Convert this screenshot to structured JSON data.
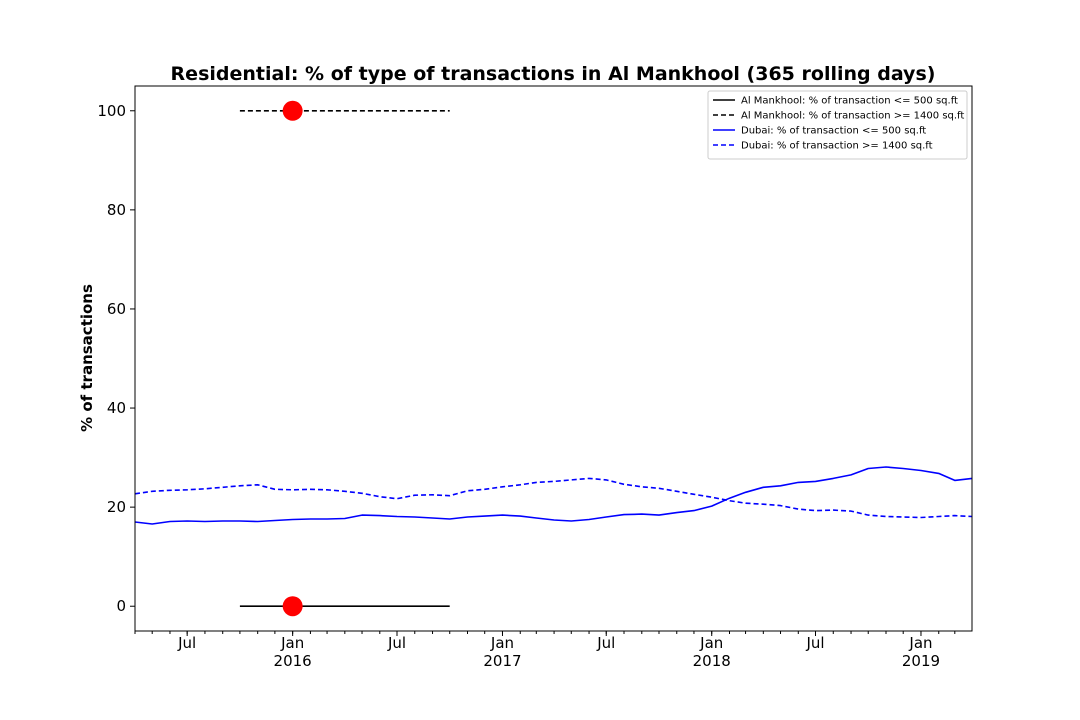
{
  "chart_data": {
    "type": "line",
    "title": "Residential: % of type of transactions in Al Mankhool (365 rolling days)",
    "xlabel": "",
    "ylabel": "% of transactions",
    "xlim": [
      "2015-04-01",
      "2019-03-31"
    ],
    "ylim": [
      -5,
      105
    ],
    "yticks": [
      0,
      20,
      40,
      60,
      80,
      100
    ],
    "xticks": [
      {
        "date": "2015-07-01",
        "label": "Jul",
        "year": ""
      },
      {
        "date": "2016-01-01",
        "label": "Jan",
        "year": "2016"
      },
      {
        "date": "2016-07-01",
        "label": "Jul",
        "year": ""
      },
      {
        "date": "2017-01-01",
        "label": "Jan",
        "year": "2017"
      },
      {
        "date": "2017-07-01",
        "label": "Jul",
        "year": ""
      },
      {
        "date": "2018-01-01",
        "label": "Jan",
        "year": "2018"
      },
      {
        "date": "2018-07-01",
        "label": "Jul",
        "year": ""
      },
      {
        "date": "2019-01-01",
        "label": "Jan",
        "year": "2019"
      }
    ],
    "grid": false,
    "legend": "top-right",
    "series": [
      {
        "name": "Al Mankhool: % of transaction <= 500 sq.ft",
        "color": "#000000",
        "dash": "solid",
        "points": [
          [
            "2015-10-01",
            0
          ],
          [
            "2016-10-01",
            0
          ]
        ]
      },
      {
        "name": "Al Mankhool: % of transaction >= 1400 sq.ft",
        "color": "#000000",
        "dash": "dashed",
        "points": [
          [
            "2015-10-01",
            100
          ],
          [
            "2016-10-01",
            100
          ]
        ]
      },
      {
        "name": "Dubai: % of transaction <= 500 sq.ft",
        "color": "#0000ff",
        "dash": "solid",
        "points": [
          [
            "2015-04-01",
            17
          ],
          [
            "2015-05-01",
            16.6
          ],
          [
            "2015-06-01",
            17.1
          ],
          [
            "2015-07-01",
            17.2
          ],
          [
            "2015-08-01",
            17.1
          ],
          [
            "2015-09-01",
            17.2
          ],
          [
            "2015-10-01",
            17.2
          ],
          [
            "2015-11-01",
            17.1
          ],
          [
            "2015-12-01",
            17.3
          ],
          [
            "2016-01-01",
            17.5
          ],
          [
            "2016-02-01",
            17.6
          ],
          [
            "2016-03-01",
            17.6
          ],
          [
            "2016-04-01",
            17.7
          ],
          [
            "2016-05-01",
            18.4
          ],
          [
            "2016-06-01",
            18.3
          ],
          [
            "2016-07-01",
            18.1
          ],
          [
            "2016-08-01",
            18.0
          ],
          [
            "2016-09-01",
            17.8
          ],
          [
            "2016-10-01",
            17.6
          ],
          [
            "2016-11-01",
            18.0
          ],
          [
            "2016-12-01",
            18.2
          ],
          [
            "2017-01-01",
            18.4
          ],
          [
            "2017-02-01",
            18.2
          ],
          [
            "2017-03-01",
            17.8
          ],
          [
            "2017-04-01",
            17.4
          ],
          [
            "2017-05-01",
            17.2
          ],
          [
            "2017-06-01",
            17.5
          ],
          [
            "2017-07-01",
            18.0
          ],
          [
            "2017-08-01",
            18.5
          ],
          [
            "2017-09-01",
            18.6
          ],
          [
            "2017-10-01",
            18.4
          ],
          [
            "2017-11-01",
            18.9
          ],
          [
            "2017-12-01",
            19.3
          ],
          [
            "2018-01-01",
            20.2
          ],
          [
            "2018-02-01",
            21.8
          ],
          [
            "2018-03-01",
            23.0
          ],
          [
            "2018-04-01",
            24.0
          ],
          [
            "2018-05-01",
            24.3
          ],
          [
            "2018-06-01",
            25.0
          ],
          [
            "2018-07-01",
            25.2
          ],
          [
            "2018-08-01",
            25.8
          ],
          [
            "2018-09-01",
            26.5
          ],
          [
            "2018-10-01",
            27.8
          ],
          [
            "2018-11-01",
            28.1
          ],
          [
            "2018-12-01",
            27.8
          ],
          [
            "2019-01-01",
            27.4
          ],
          [
            "2019-02-01",
            26.8
          ],
          [
            "2019-03-01",
            25.4
          ],
          [
            "2019-03-31",
            25.8
          ]
        ]
      },
      {
        "name": "Dubai: % of transaction >= 1400 sq.ft",
        "color": "#0000ff",
        "dash": "dashed",
        "points": [
          [
            "2015-04-01",
            22.7
          ],
          [
            "2015-05-01",
            23.2
          ],
          [
            "2015-06-01",
            23.4
          ],
          [
            "2015-07-01",
            23.5
          ],
          [
            "2015-08-01",
            23.7
          ],
          [
            "2015-09-01",
            24.0
          ],
          [
            "2015-10-01",
            24.3
          ],
          [
            "2015-11-01",
            24.5
          ],
          [
            "2015-12-01",
            23.6
          ],
          [
            "2016-01-01",
            23.5
          ],
          [
            "2016-02-01",
            23.6
          ],
          [
            "2016-03-01",
            23.5
          ],
          [
            "2016-04-01",
            23.2
          ],
          [
            "2016-05-01",
            22.8
          ],
          [
            "2016-06-01",
            22.1
          ],
          [
            "2016-07-01",
            21.7
          ],
          [
            "2016-08-01",
            22.4
          ],
          [
            "2016-09-01",
            22.5
          ],
          [
            "2016-10-01",
            22.3
          ],
          [
            "2016-11-01",
            23.3
          ],
          [
            "2016-12-01",
            23.6
          ],
          [
            "2017-01-01",
            24.1
          ],
          [
            "2017-02-01",
            24.5
          ],
          [
            "2017-03-01",
            25.0
          ],
          [
            "2017-04-01",
            25.2
          ],
          [
            "2017-05-01",
            25.5
          ],
          [
            "2017-06-01",
            25.8
          ],
          [
            "2017-07-01",
            25.5
          ],
          [
            "2017-08-01",
            24.6
          ],
          [
            "2017-09-01",
            24.1
          ],
          [
            "2017-10-01",
            23.8
          ],
          [
            "2017-11-01",
            23.2
          ],
          [
            "2017-12-01",
            22.6
          ],
          [
            "2018-01-01",
            22.0
          ],
          [
            "2018-02-01",
            21.3
          ],
          [
            "2018-03-01",
            20.8
          ],
          [
            "2018-04-01",
            20.6
          ],
          [
            "2018-05-01",
            20.3
          ],
          [
            "2018-06-01",
            19.6
          ],
          [
            "2018-07-01",
            19.3
          ],
          [
            "2018-08-01",
            19.4
          ],
          [
            "2018-09-01",
            19.2
          ],
          [
            "2018-10-01",
            18.4
          ],
          [
            "2018-11-01",
            18.1
          ],
          [
            "2018-12-01",
            18.0
          ],
          [
            "2019-01-01",
            17.9
          ],
          [
            "2019-02-01",
            18.1
          ],
          [
            "2019-03-01",
            18.3
          ],
          [
            "2019-03-31",
            18.1
          ]
        ]
      }
    ],
    "markers": [
      {
        "date": "2016-01-01",
        "y": 100,
        "color": "#ff0000"
      },
      {
        "date": "2016-01-01",
        "y": 0,
        "color": "#ff0000"
      }
    ]
  }
}
